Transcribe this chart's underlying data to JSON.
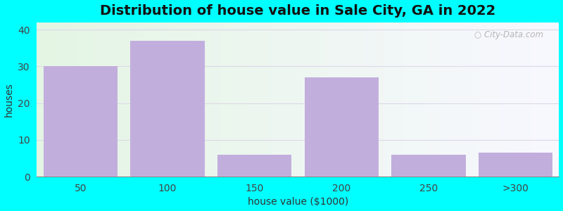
{
  "title": "Distribution of house value in Sale City, GA in 2022",
  "xlabel": "house value ($1000)",
  "ylabel": "houses",
  "categories": [
    "50",
    "100",
    "150",
    "200",
    "250",
    ">300"
  ],
  "values": [
    30,
    37,
    6,
    27,
    6,
    6.5
  ],
  "bar_color": "#c2aedd",
  "bar_edge_color": "#c2aedd",
  "ylim": [
    0,
    42
  ],
  "yticks": [
    0,
    10,
    20,
    30,
    40
  ],
  "background_outer": "#00ffff",
  "bg_left_color": "#e4f5e4",
  "bg_right_color": "#f8f8ff",
  "grid_color": "#ddd8e8",
  "title_fontsize": 14,
  "axis_fontsize": 10,
  "tick_fontsize": 10
}
